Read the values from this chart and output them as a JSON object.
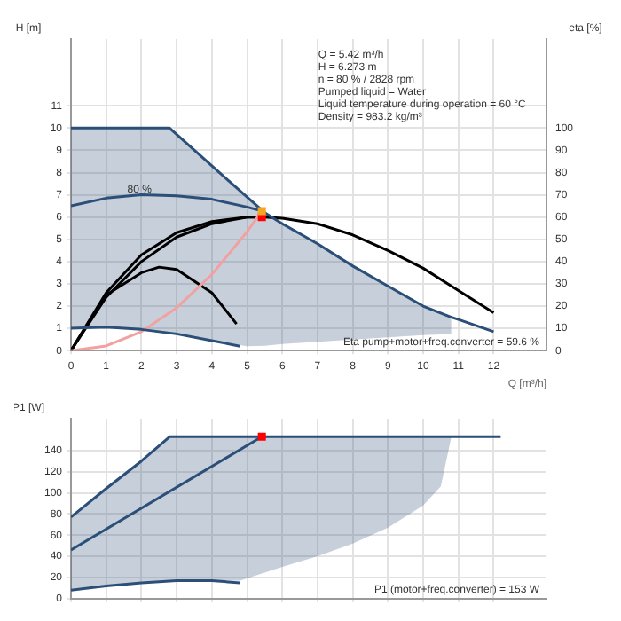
{
  "chart_data": [
    {
      "type": "line",
      "xlabel": "Q [m³/h]",
      "ylabel": "H [m]",
      "y2label": "eta [%]",
      "xlim": [
        0,
        13.5
      ],
      "xticks": [
        0,
        1,
        2,
        3,
        4,
        5,
        6,
        7,
        8,
        9,
        10,
        11,
        12
      ],
      "ylim": [
        0,
        14
      ],
      "yticks": [
        0,
        1,
        2,
        3,
        4,
        5,
        6,
        7,
        8,
        9,
        10,
        11
      ],
      "y2lim": [
        0,
        140
      ],
      "y2ticks": [
        0,
        10,
        20,
        30,
        40,
        50,
        60,
        70,
        80,
        90,
        100
      ],
      "grid": true,
      "legend": false,
      "series": [
        {
          "type": "line",
          "color": "#2b4f78",
          "x": [
            0,
            1,
            2,
            2.8,
            4,
            5,
            5.5,
            6,
            7,
            8,
            9,
            10,
            10.8,
            11,
            12
          ],
          "values": [
            10,
            10,
            10,
            10,
            8.3,
            6.9,
            6.2,
            5.7,
            4.8,
            3.8,
            2.9,
            2.0,
            1.5,
            1.4,
            0.85
          ],
          "lower": [
            1,
            1.05,
            0.95,
            0.8,
            0.45,
            0.2,
            0.22,
            0.3,
            0.4,
            0.5,
            0.6,
            0.7,
            0.75,
            null,
            null
          ],
          "upper": [
            10,
            10,
            10,
            10,
            8.3,
            6.9,
            6.2,
            5.7,
            4.8,
            3.8,
            2.9,
            2.0,
            1.5,
            null,
            null
          ]
        },
        {
          "type": "line",
          "color": "#2b4f78",
          "x": [
            0,
            1,
            2,
            3,
            4,
            4.8
          ],
          "values": [
            1,
            1.05,
            0.95,
            0.75,
            0.45,
            0.2
          ]
        },
        {
          "type": "line",
          "color": "#2b4f78",
          "x": [
            0,
            1,
            2,
            3,
            4,
            5,
            5.42
          ],
          "values": [
            6.5,
            6.85,
            7.0,
            6.95,
            6.8,
            6.45,
            6.27
          ]
        },
        {
          "type": "line",
          "color": "#f2a0a0",
          "x": [
            0,
            1,
            2,
            3,
            4,
            5,
            5.42
          ],
          "values": [
            0,
            0.21,
            0.85,
            1.92,
            3.42,
            5.34,
            6.27
          ]
        },
        {
          "type": "line",
          "color": "#000000",
          "x": [
            0,
            1,
            2,
            3,
            4,
            5,
            5.42
          ],
          "values": [
            0,
            2.6,
            4.3,
            5.3,
            5.8,
            6.0,
            6.0
          ]
        },
        {
          "type": "line",
          "color": "#000000",
          "x": [
            0,
            1,
            2,
            2.5,
            3,
            4,
            4.7
          ],
          "values": [
            0,
            2.5,
            3.5,
            3.75,
            3.65,
            2.6,
            1.2
          ]
        },
        {
          "type": "line",
          "axis": "y2",
          "color": "#000000",
          "x": [
            0,
            1,
            2,
            3,
            4,
            5,
            5.5,
            6,
            7,
            8,
            9,
            10,
            11,
            12
          ],
          "values": [
            0,
            24,
            40,
            51,
            57,
            60,
            60,
            59.5,
            57,
            52,
            45,
            37,
            27,
            17
          ]
        },
        {
          "type": "scatter",
          "marker": "square",
          "color": "#f5a623",
          "x": [
            5.42
          ],
          "values": [
            6.27
          ]
        },
        {
          "type": "scatter",
          "marker": "square",
          "color": "#ff0000",
          "x": [
            5.42
          ],
          "values": [
            6.0
          ]
        }
      ],
      "annotations": [
        {
          "text": "80 %",
          "x": 1.6,
          "y": 7.0
        },
        "Q = 5.42 m³/h",
        "H = 6.273 m",
        "n = 80 % / 2828 rpm",
        "Pumped liquid = Water",
        "Liquid temperature during operation = 60 °C",
        "Density = 983.2 kg/m³",
        "Eta pump+motor+freq.converter = 59.6 %"
      ]
    },
    {
      "type": "line",
      "ylabel": "P1 [W]",
      "xlim": [
        0,
        13.5
      ],
      "xticks": [
        0,
        1,
        2,
        3,
        4,
        5,
        6,
        7,
        8,
        9,
        10,
        11,
        12
      ],
      "ylim": [
        0,
        170
      ],
      "yticks": [
        0,
        20,
        40,
        60,
        80,
        100,
        120,
        140
      ],
      "grid": true,
      "legend": false,
      "tick_labels": "y",
      "series": [
        {
          "type": "line",
          "color": "#2b4f78",
          "x": [
            0,
            1,
            2,
            2.8,
            4,
            4.8,
            6,
            7,
            8,
            9,
            10,
            10.5,
            10.8,
            12.2
          ],
          "values": [
            77,
            104,
            130,
            153,
            153,
            153,
            153,
            153,
            153,
            153,
            153,
            153,
            153,
            153
          ],
          "lower": [
            8,
            12,
            15,
            17,
            17,
            17,
            30,
            40,
            52,
            67,
            88,
            106,
            153,
            null
          ],
          "upper": [
            77,
            104,
            130,
            153,
            153,
            153,
            153,
            153,
            153,
            153,
            153,
            153,
            153,
            null
          ]
        },
        {
          "type": "line",
          "color": "#2b4f78",
          "x": [
            0,
            5.42
          ],
          "values": [
            46,
            153
          ]
        },
        {
          "type": "line",
          "color": "#2b4f78",
          "x": [
            0,
            1,
            2,
            3,
            4,
            4.8
          ],
          "values": [
            8,
            12,
            15,
            17,
            17,
            15
          ]
        },
        {
          "type": "scatter",
          "marker": "square",
          "color": "#ff0000",
          "x": [
            5.42
          ],
          "values": [
            153
          ]
        }
      ],
      "annotations": [
        "P1 (motor+freq.converter) = 153 W"
      ]
    }
  ]
}
